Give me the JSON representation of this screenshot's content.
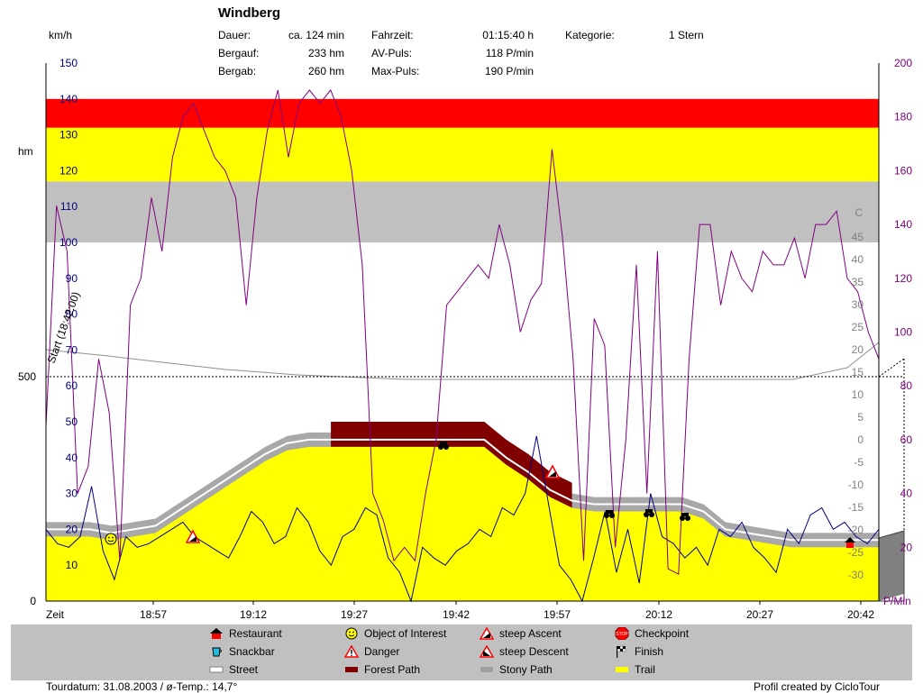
{
  "header": {
    "title": "Windberg",
    "left_unit": "km/h",
    "hm_unit": "hm",
    "stats": [
      {
        "label": "Dauer:",
        "value": "ca. 124 min"
      },
      {
        "label": "Bergauf:",
        "value": "233 hm"
      },
      {
        "label": "Bergab:",
        "value": "260 hm"
      },
      {
        "label": "Fahrzeit:",
        "value": "01:15:40 h"
      },
      {
        "label": "AV-Puls:",
        "value": "118 P/min"
      },
      {
        "label": "Max-Puls:",
        "value": "190 P/min"
      },
      {
        "label": "Kategorie:",
        "value": "1 Stern"
      }
    ]
  },
  "chart_data": {
    "type": "line",
    "title": "Windberg",
    "xlabel": "Zeit",
    "x_ticks": [
      "18:57",
      "19:12",
      "19:27",
      "19:42",
      "19:57",
      "20:12",
      "20:27",
      "20:42"
    ],
    "y_left": {
      "label": "km/h",
      "ticks": [
        10,
        20,
        30,
        40,
        50,
        60,
        70,
        80,
        90,
        100,
        110,
        120,
        130,
        140,
        150
      ],
      "range": [
        0,
        150
      ]
    },
    "y_elevation": {
      "label": "hm",
      "ticks": [
        0,
        500
      ]
    },
    "y_temp": {
      "label": "C",
      "ticks": [
        45,
        40,
        35,
        30,
        25,
        20,
        15,
        10,
        5,
        0,
        -5,
        -10,
        -15,
        -20,
        -25,
        -30
      ]
    },
    "y_right": {
      "label": "P/Min",
      "ticks": [
        20,
        40,
        60,
        80,
        100,
        120,
        140,
        160,
        180,
        200
      ],
      "range": [
        0,
        200
      ]
    },
    "start_label": "Start (18:42:00)",
    "zones": [
      {
        "from_kmh": 100,
        "to_kmh": 117,
        "color": "#c0c0c0"
      },
      {
        "from_kmh": 117,
        "to_kmh": 132,
        "color": "#ffff00"
      },
      {
        "from_kmh": 132,
        "to_kmh": 140,
        "color": "#ff0000"
      }
    ],
    "series": [
      {
        "name": "Trail",
        "color": "#ffff00"
      },
      {
        "name": "Stony Path",
        "color": "#a0a0a0"
      },
      {
        "name": "Forest Path",
        "color": "#800000"
      },
      {
        "name": "Street",
        "color": "#ffffff"
      }
    ],
    "elevation_kmh_scale": [
      18,
      18,
      18,
      17,
      18,
      19,
      23,
      27,
      31,
      35,
      39,
      42,
      43,
      43,
      43,
      43,
      43,
      43,
      43,
      43,
      43,
      38,
      34,
      29,
      26,
      25,
      25,
      25,
      25,
      25,
      23,
      18,
      17,
      16,
      15,
      15,
      15,
      15,
      15
    ],
    "heart_rate": [
      65,
      147,
      130,
      40,
      50,
      90,
      70,
      15,
      110,
      120,
      150,
      130,
      165,
      180,
      185,
      175,
      165,
      160,
      150,
      110,
      150,
      175,
      190,
      165,
      185,
      190,
      185,
      190,
      180,
      160,
      125,
      40,
      30,
      15,
      20,
      15,
      40,
      60,
      110,
      115,
      120,
      125,
      120,
      140,
      125,
      100,
      112,
      118,
      168,
      135,
      90,
      15,
      105,
      95,
      20,
      60,
      125,
      40,
      130,
      12,
      10,
      90,
      140,
      140,
      110,
      130,
      120,
      115,
      130,
      125,
      125,
      135,
      120,
      140,
      140,
      145,
      120,
      115,
      100,
      90
    ],
    "speed_kmh": [
      20,
      16,
      15,
      18,
      32,
      14,
      6,
      18,
      15,
      16,
      18,
      20,
      22,
      18,
      16,
      14,
      12,
      18,
      25,
      22,
      16,
      18,
      26,
      22,
      14,
      10,
      18,
      20,
      26,
      24,
      12,
      8,
      0,
      15,
      12,
      10,
      14,
      16,
      20,
      18,
      26,
      24,
      30,
      46,
      28,
      10,
      6,
      0,
      12,
      25,
      8,
      20,
      5,
      30,
      18,
      16,
      12,
      15,
      10,
      20,
      18,
      22,
      15,
      12,
      8,
      20,
      16,
      24,
      26,
      20,
      22,
      18,
      16,
      20
    ]
  },
  "poi_markers": [
    {
      "kind": "Object of Interest",
      "icon": "smiley-icon"
    },
    {
      "kind": "steep Ascent",
      "icon": "steep-ascent-icon"
    },
    {
      "kind": "steep Descent",
      "icon": "steep-descent-icon"
    },
    {
      "kind": "Restaurant",
      "icon": "restaurant-icon"
    }
  ],
  "legend": [
    {
      "label": "Restaurant",
      "icon": "restaurant-icon"
    },
    {
      "label": "Object of Interest",
      "icon": "smiley-icon"
    },
    {
      "label": "steep Ascent",
      "icon": "steep-ascent-icon"
    },
    {
      "label": "Checkpoint",
      "icon": "stop-sign-icon"
    },
    {
      "label": "Snackbar",
      "icon": "cup-icon"
    },
    {
      "label": "Danger",
      "icon": "danger-icon"
    },
    {
      "label": "steep Descent",
      "icon": "steep-descent-icon"
    },
    {
      "label": "Finish",
      "icon": "finish-flag-icon"
    },
    {
      "label": "Street",
      "icon": "street-swatch-icon"
    },
    {
      "label": "Forest Path",
      "icon": "forest-path-swatch-icon"
    },
    {
      "label": "Stony Path",
      "icon": "stony-path-swatch-icon"
    },
    {
      "label": "Trail",
      "icon": "trail-swatch-icon"
    }
  ],
  "footer": {
    "left": "Tourdatum: 31.08.2003  /  ø-Temp.: 14,7°",
    "right": "Profil created by CicloTour"
  }
}
